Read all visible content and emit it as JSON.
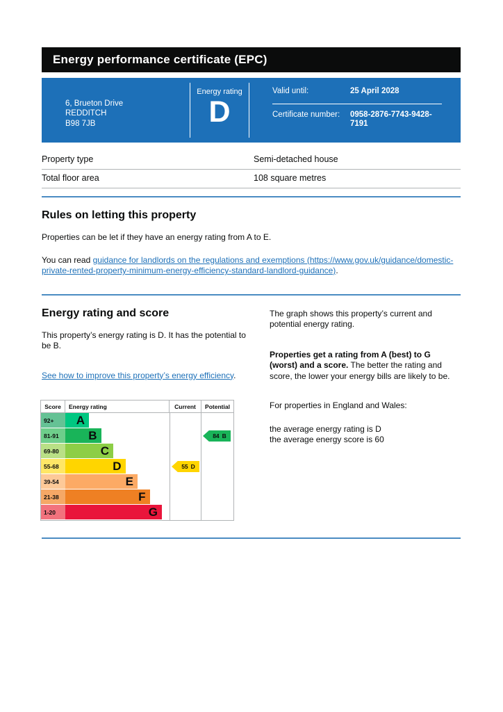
{
  "title_bar": {
    "title": "Energy performance certificate (EPC)"
  },
  "summary": {
    "address_lines": [
      "6, Brueton Drive",
      "REDDITCH",
      "B98 7JB"
    ],
    "energy_rating_label": "Energy rating",
    "energy_rating_value": "D",
    "valid_until_label": "Valid until:",
    "valid_until_value": "25 April 2028",
    "certificate_number_label": "Certificate number:",
    "certificate_number_value": "0958-2876-7743-9428-7191"
  },
  "property_details": {
    "rows": [
      {
        "label": "Property type",
        "value": "Semi-detached house"
      },
      {
        "label": "Total floor area",
        "value": "108 square metres"
      }
    ]
  },
  "rules_section": {
    "heading": "Rules on letting this property",
    "paragraph1": "Properties can be let if they have an energy rating from A to E.",
    "paragraph2_prefix": "You can read ",
    "link_text": "guidance for landlords on the regulations and exemptions (https://www.gov.uk/guidance/domestic-private-rented-property-minimum-energy-efficiency-standard-landlord-guidance)",
    "paragraph2_suffix": "."
  },
  "rating_section": {
    "heading": "Energy rating and score",
    "summary_text": "This property’s energy rating is D. It has the potential to be B.",
    "improve_link_text": "See how to improve this property’s energy efficiency",
    "improve_link_suffix": ".",
    "right_column": {
      "graph_description": "The graph shows this property’s current and potential energy rating.",
      "explanation_bold": "Properties get a rating from A (best) to G (worst) and a score.",
      "explanation_rest": " The better the rating and score, the lower your energy bills are likely to be.",
      "england_wales_note": "For properties in England and Wales:",
      "average_rating_line": "the average energy rating is D",
      "average_score_line": "the average energy score is 60"
    }
  },
  "colors": {
    "brand_blue": "#1d70b8",
    "title_bar_black": "#0b0c0c",
    "section_rule_blue": "#4a8bc2",
    "link_blue": "#1d70b8",
    "chart_border_grey": "#b1b4b6"
  },
  "chart_data": {
    "type": "bar",
    "title": "Energy efficiency rating chart",
    "columns": [
      "Score",
      "Energy rating",
      "Current",
      "Potential"
    ],
    "bands": [
      {
        "score_range": "92+",
        "letter": "A",
        "color": "#00c781",
        "score_color": "#65c295"
      },
      {
        "score_range": "81-91",
        "letter": "B",
        "color": "#19b459",
        "score_color": "#6ece8b"
      },
      {
        "score_range": "69-80",
        "letter": "C",
        "color": "#8dce46",
        "score_color": "#b9e086"
      },
      {
        "score_range": "55-68",
        "letter": "D",
        "color": "#ffd500",
        "score_color": "#ffe666"
      },
      {
        "score_range": "39-54",
        "letter": "E",
        "color": "#fcaa65",
        "score_color": "#fdc998"
      },
      {
        "score_range": "21-38",
        "letter": "F",
        "color": "#ef8023",
        "score_color": "#f5a866"
      },
      {
        "score_range": "1-20",
        "letter": "G",
        "color": "#e9153b",
        "score_color": "#f2727d"
      }
    ],
    "current": {
      "score": "55",
      "band": "D",
      "arrow_color": "#ffd500",
      "band_index": 3
    },
    "potential": {
      "score": "84",
      "band": "B",
      "arrow_color": "#19b459",
      "band_index": 1
    }
  }
}
